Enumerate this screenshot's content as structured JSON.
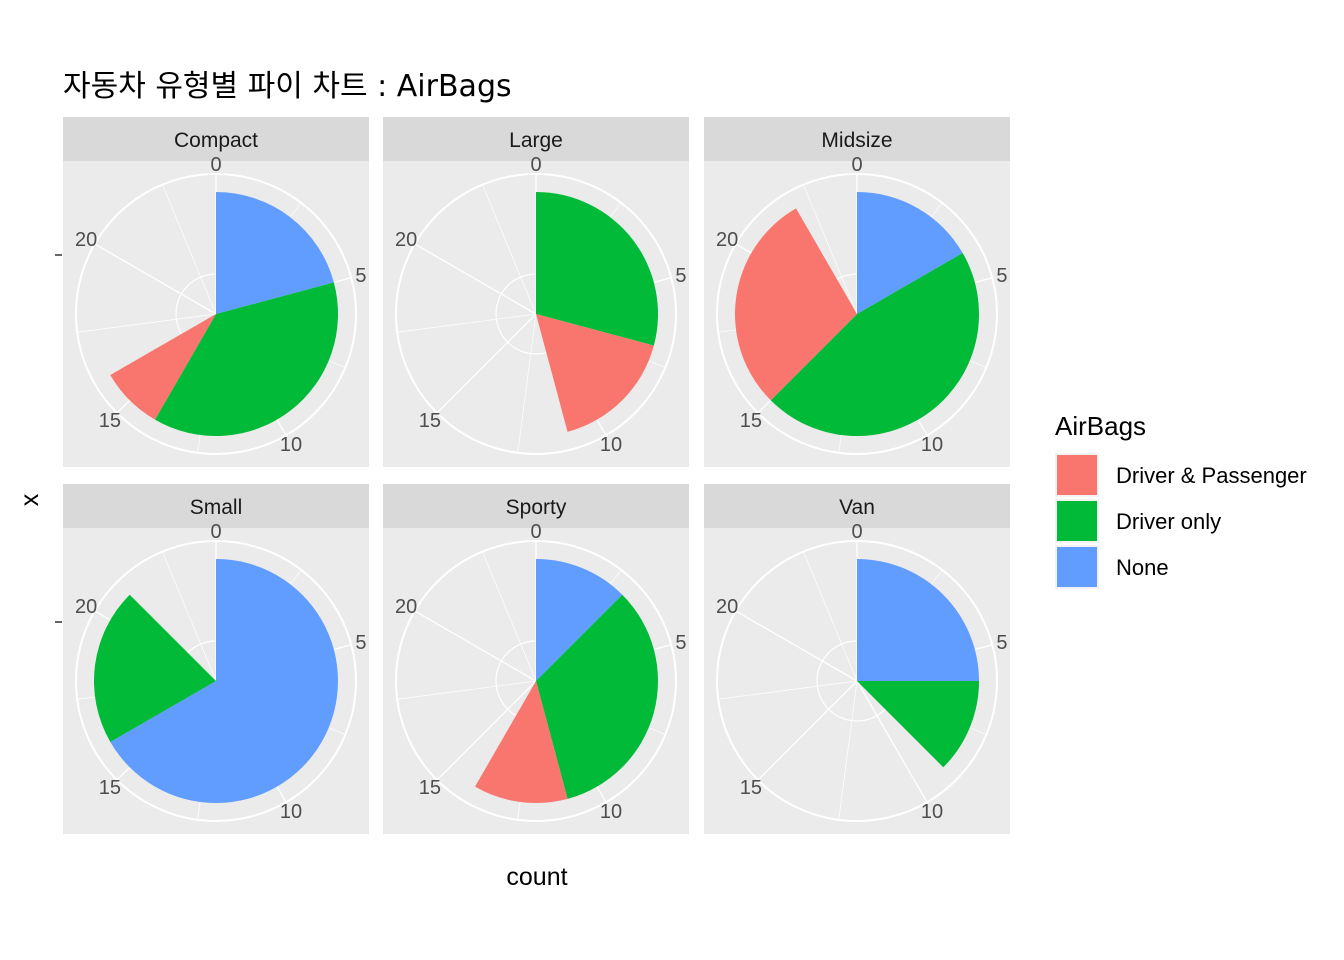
{
  "chart_data": {
    "type": "pie",
    "title": "자동차 유형별 파이 차트 : AirBags",
    "xlabel": "count",
    "ylabel": "x",
    "coord": "polar (theta = count), faceted by vehicle type",
    "theta_range": [
      0,
      24
    ],
    "theta_ticks": [
      "0",
      "5",
      "10",
      "15",
      "20"
    ],
    "legend_title": "AirBags",
    "legend_position": "right",
    "series": [
      {
        "name": "Driver & Passenger",
        "color": "#F8766D"
      },
      {
        "name": "Driver only",
        "color": "#00BA38"
      },
      {
        "name": "None",
        "color": "#619CFF"
      }
    ],
    "facets": [
      {
        "label": "Compact",
        "values": {
          "Driver & Passenger": 2,
          "Driver only": 9,
          "None": 5
        }
      },
      {
        "label": "Large",
        "values": {
          "Driver & Passenger": 4,
          "Driver only": 7,
          "None": 0
        }
      },
      {
        "label": "Midsize",
        "values": {
          "Driver & Passenger": 7,
          "Driver only": 11,
          "None": 4
        }
      },
      {
        "label": "Small",
        "values": {
          "Driver & Passenger": 0,
          "Driver only": 5,
          "None": 16
        }
      },
      {
        "label": "Sporty",
        "values": {
          "Driver & Passenger": 3,
          "Driver only": 8,
          "None": 3
        }
      },
      {
        "label": "Van",
        "values": {
          "Driver & Passenger": 0,
          "Driver only": 3,
          "None": 6
        }
      }
    ]
  }
}
